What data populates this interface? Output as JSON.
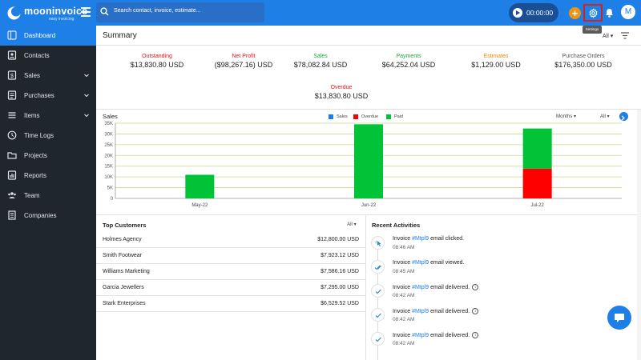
{
  "app": {
    "name": "mooninvoice",
    "tagline": "easy invoicing"
  },
  "search": {
    "placeholder": "Search contact, invoice, estimate..."
  },
  "timer": {
    "value": "00:00:00"
  },
  "tooltip": "Settings",
  "user": {
    "initial": "M"
  },
  "sidebar": {
    "items": [
      {
        "label": "Dashboard",
        "icon": "dashboard-icon",
        "active": true
      },
      {
        "label": "Contacts",
        "icon": "contacts-icon"
      },
      {
        "label": "Sales",
        "icon": "sales-icon",
        "expandable": true
      },
      {
        "label": "Purchases",
        "icon": "purchases-icon",
        "expandable": true
      },
      {
        "label": "Items",
        "icon": "items-icon",
        "expandable": true
      },
      {
        "label": "Time Logs",
        "icon": "clock-icon"
      },
      {
        "label": "Projects",
        "icon": "folder-icon"
      },
      {
        "label": "Reports",
        "icon": "reports-icon"
      },
      {
        "label": "Team",
        "icon": "team-icon"
      },
      {
        "label": "Companies",
        "icon": "companies-icon"
      }
    ]
  },
  "summary": {
    "title": "Summary",
    "filter": "All",
    "stats": [
      {
        "label": "Outstanding",
        "value": "$13,830.80 USD",
        "color": "#e0161b"
      },
      {
        "label": "Net Profit",
        "value": "($98,267.16) USD",
        "color": "#e0161b"
      },
      {
        "label": "Sales",
        "value": "$78,082.84 USD",
        "color": "#1da83a"
      },
      {
        "label": "Payments",
        "value": "$64,252.04 USD",
        "color": "#1da83a"
      },
      {
        "label": "Estimates",
        "value": "$1,129.00 USD",
        "color": "#f08a00"
      },
      {
        "label": "Purchase Orders",
        "value": "$176,350.00 USD",
        "color": "#555555"
      },
      {
        "label": "Overdue",
        "value": "$13,830.80 USD",
        "color": "#e0161b"
      }
    ]
  },
  "chart_data": {
    "type": "bar",
    "title": "Sales",
    "period": "Months",
    "filter": "All",
    "categories": [
      "May-22",
      "Jun-22",
      "Jul-22"
    ],
    "series": [
      {
        "name": "Sales",
        "color": "#1e7fe6",
        "values": [
          0,
          0,
          0
        ]
      },
      {
        "name": "Overdue",
        "color": "#ff0000",
        "values": [
          0,
          0,
          13830.8
        ]
      },
      {
        "name": "Paid",
        "color": "#00c338",
        "values": [
          11000,
          34500,
          18700
        ]
      }
    ],
    "stacked": true,
    "yticks": [
      "35K",
      "30K",
      "25K",
      "20K",
      "15K",
      "10K",
      "5K",
      "0"
    ],
    "ylim": [
      0,
      35000
    ],
    "grid": true
  },
  "top_customers": {
    "title": "Top Customers",
    "filter": "All",
    "rows": [
      {
        "name": "Holmes Agency",
        "amount": "$12,800.00 USD"
      },
      {
        "name": "Smith Footwear",
        "amount": "$7,923.12 USD"
      },
      {
        "name": "Williams Marketing",
        "amount": "$7,586.16 USD"
      },
      {
        "name": "Garcia Jewellers",
        "amount": "$7,295.00 USD"
      },
      {
        "name": "Stark Enterprises",
        "amount": "$6,529.52 USD"
      }
    ]
  },
  "recent_activities": {
    "title": "Recent Activities",
    "items": [
      {
        "prefix": "Invoice ",
        "invoice": "#Mtpl9",
        "suffix": " email clicked.",
        "time": "08:46 AM",
        "icon": "click-icon",
        "info": false
      },
      {
        "prefix": "Invoice ",
        "invoice": "#Mtpl9",
        "suffix": " email viewed.",
        "time": "08:45 AM",
        "icon": "double-check-icon",
        "info": false
      },
      {
        "prefix": "Invoice ",
        "invoice": "#Mtpl9",
        "suffix": " email delivered.",
        "time": "08:42 AM",
        "icon": "check-icon",
        "info": true
      },
      {
        "prefix": "Invoice ",
        "invoice": "#Mtpl9",
        "suffix": " email delivered.",
        "time": "08:42 AM",
        "icon": "check-icon",
        "info": true
      },
      {
        "prefix": "Invoice ",
        "invoice": "#Mtpl9",
        "suffix": " email delivered.",
        "time": "08:42 AM",
        "icon": "check-icon",
        "info": true
      }
    ]
  }
}
